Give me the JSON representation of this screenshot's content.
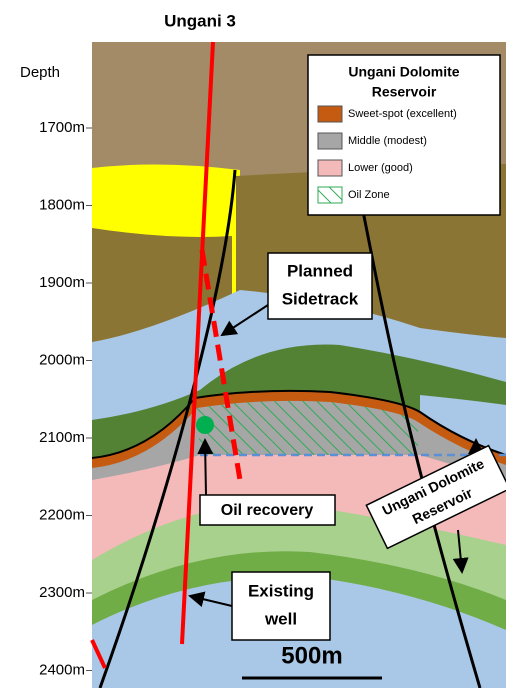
{
  "title": "Ungani 3",
  "depth_axis": {
    "title": "Depth",
    "labels": [
      "1700m",
      "1800m",
      "1900m",
      "2000m",
      "2100m",
      "2200m",
      "2300m",
      "2400m"
    ]
  },
  "legend": {
    "title_lines": [
      "Ungani Dolomite",
      "Reservoir"
    ],
    "items": [
      {
        "label": "Sweet-spot (excellent)",
        "color": "#c55a11"
      },
      {
        "label": "Middle (modest)",
        "color": "#a6a6a6"
      },
      {
        "label": "Lower (good)",
        "color": "#f4b9b9"
      },
      {
        "label": "Oil Zone",
        "color": "#2eaa55"
      }
    ]
  },
  "callouts": {
    "planned_sidetrack": [
      "Planned",
      "Sidetrack"
    ],
    "oil_recovery": [
      "Oil recovery"
    ],
    "existing_well": [
      "Existing",
      "well"
    ],
    "reservoir": [
      "Ungani Dolomite",
      "Reservoir"
    ]
  },
  "scale_bar": "500m"
}
